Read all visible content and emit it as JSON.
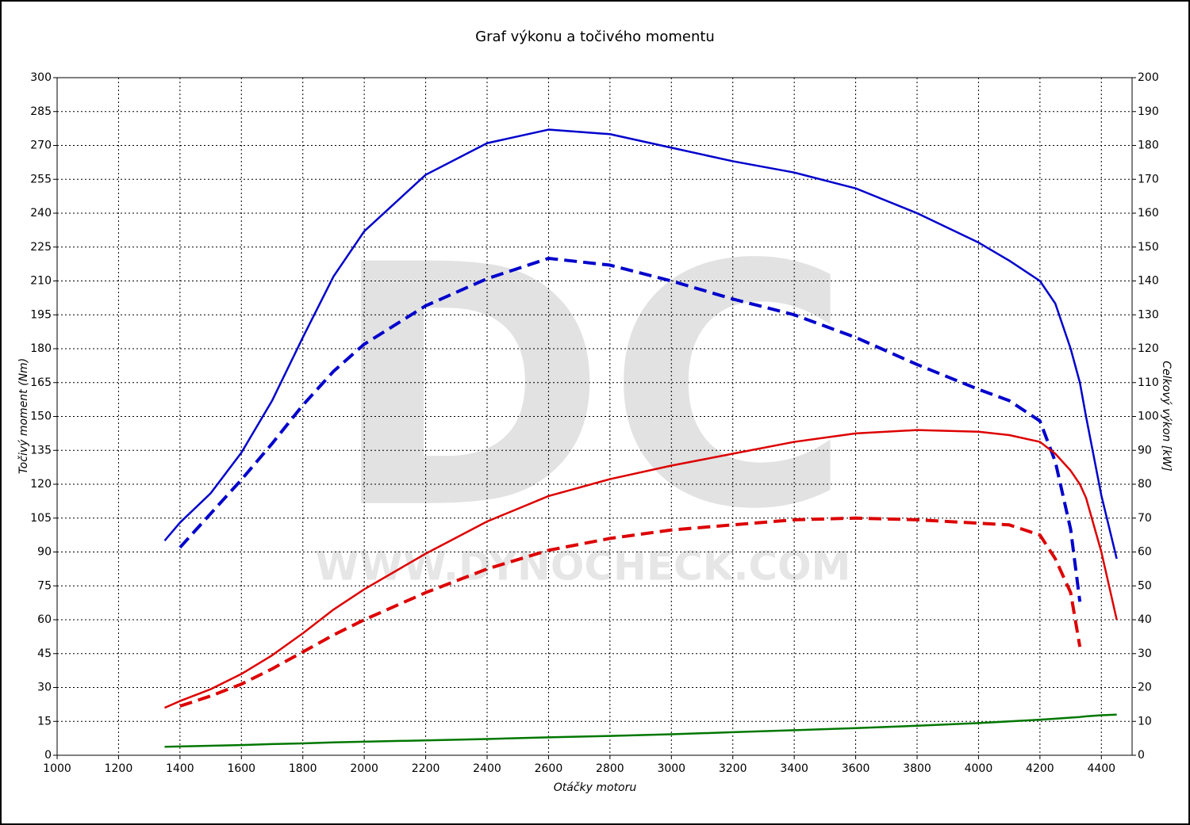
{
  "watermark": {
    "logo": "DC",
    "url": "WWW.DYNOCHECK.COM"
  },
  "chart_data": {
    "type": "line",
    "title": "Graf výkonu a točivého momentu",
    "x_label": "Otáčky motoru",
    "y_label": "Točivý moment (Nm)",
    "y2_label": "Celkový výkon [kW]",
    "x": [
      1350,
      1400,
      1500,
      1600,
      1700,
      1800,
      1900,
      2000,
      2200,
      2400,
      2600,
      2800,
      3000,
      3200,
      3400,
      3600,
      3800,
      4000,
      4100,
      4200,
      4250,
      4300,
      4330,
      4350,
      4400,
      4450
    ],
    "series": [
      {
        "color": "#0000cc",
        "dash": false,
        "values": [
          95,
          103,
          116,
          134,
          157,
          185,
          212,
          232,
          257,
          271,
          277,
          275,
          269,
          263,
          258,
          251,
          240,
          227,
          219,
          210,
          200,
          180,
          165,
          150,
          115,
          87
        ]
      },
      {
        "color": "#0000cc",
        "dash": true,
        "values": [
          null,
          92,
          107,
          122,
          138,
          155,
          170,
          182,
          199,
          211,
          220,
          217,
          210,
          202,
          195,
          185,
          173,
          162,
          157,
          148,
          130,
          100,
          68,
          null,
          null,
          null
        ]
      },
      {
        "color": "#dd0000",
        "dash": false,
        "axis": "y2",
        "values": [
          14,
          16,
          19.5,
          24,
          29.5,
          36,
          43,
          49,
          59.5,
          69,
          76.5,
          81.5,
          85.5,
          89,
          92.5,
          95,
          96,
          95.5,
          94.5,
          92.5,
          89,
          84,
          80,
          76,
          60,
          40
        ]
      },
      {
        "color": "#dd0000",
        "dash": true,
        "axis": "y2",
        "values": [
          null,
          14.5,
          17.5,
          21,
          25.5,
          30.5,
          35.5,
          40,
          48,
          55,
          60.5,
          64,
          66.5,
          68,
          69.5,
          70,
          69.5,
          68.5,
          68,
          65,
          58,
          48,
          32,
          null,
          null,
          null
        ]
      },
      {
        "color": "#007700",
        "dash": false,
        "axis": "y2",
        "values": [
          2.5,
          2.6,
          2.8,
          3.0,
          3.3,
          3.5,
          3.8,
          4,
          4.4,
          4.8,
          5.3,
          5.7,
          6.2,
          6.8,
          7.4,
          8.0,
          8.7,
          9.5,
          10,
          10.5,
          10.8,
          11.1,
          11.3,
          11.5,
          11.8,
          12
        ]
      }
    ],
    "xlim": [
      1000,
      4500
    ],
    "xticks": [
      1000,
      1200,
      1400,
      1600,
      1800,
      2000,
      2200,
      2400,
      2600,
      2800,
      3000,
      3200,
      3400,
      3600,
      3800,
      4000,
      4200,
      4400
    ],
    "ylim": [
      0,
      300
    ],
    "yticks": [
      0,
      15,
      30,
      45,
      60,
      75,
      90,
      105,
      120,
      135,
      150,
      165,
      180,
      195,
      210,
      225,
      240,
      255,
      270,
      285,
      300
    ],
    "y2lim": [
      0,
      200
    ],
    "y2ticks": [
      0,
      10,
      20,
      30,
      40,
      50,
      60,
      70,
      80,
      90,
      100,
      110,
      120,
      130,
      140,
      150,
      160,
      170,
      180,
      190,
      200
    ],
    "grid": true
  }
}
